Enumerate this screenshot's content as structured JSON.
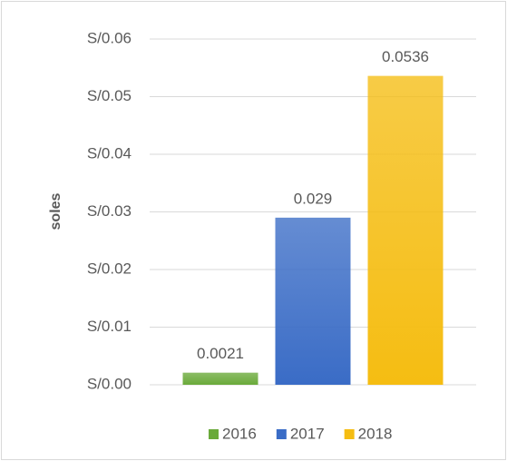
{
  "chart_data": {
    "type": "bar",
    "y_label": "soles",
    "categories": [
      null
    ],
    "series": [
      {
        "name": "2016",
        "color": "#6aaa3a",
        "values": [
          0.0021
        ]
      },
      {
        "name": "2017",
        "color": "#3a6cc6",
        "values": [
          0.029
        ]
      },
      {
        "name": "2018",
        "color": "#f5bd12",
        "values": [
          0.0536
        ]
      }
    ],
    "ylim": [
      0,
      0.06
    ],
    "yticks": [
      {
        "value": 0,
        "label": "S/0.00"
      },
      {
        "value": 0.01,
        "label": "S/0.01"
      },
      {
        "value": 0.02,
        "label": "S/0.02"
      },
      {
        "value": 0.03,
        "label": "S/0.03"
      },
      {
        "value": 0.04,
        "label": "S/0.04"
      },
      {
        "value": 0.05,
        "label": "S/0.05"
      },
      {
        "value": 0.06,
        "label": "S/0.06"
      }
    ],
    "grid": true,
    "legend": "bottom"
  }
}
